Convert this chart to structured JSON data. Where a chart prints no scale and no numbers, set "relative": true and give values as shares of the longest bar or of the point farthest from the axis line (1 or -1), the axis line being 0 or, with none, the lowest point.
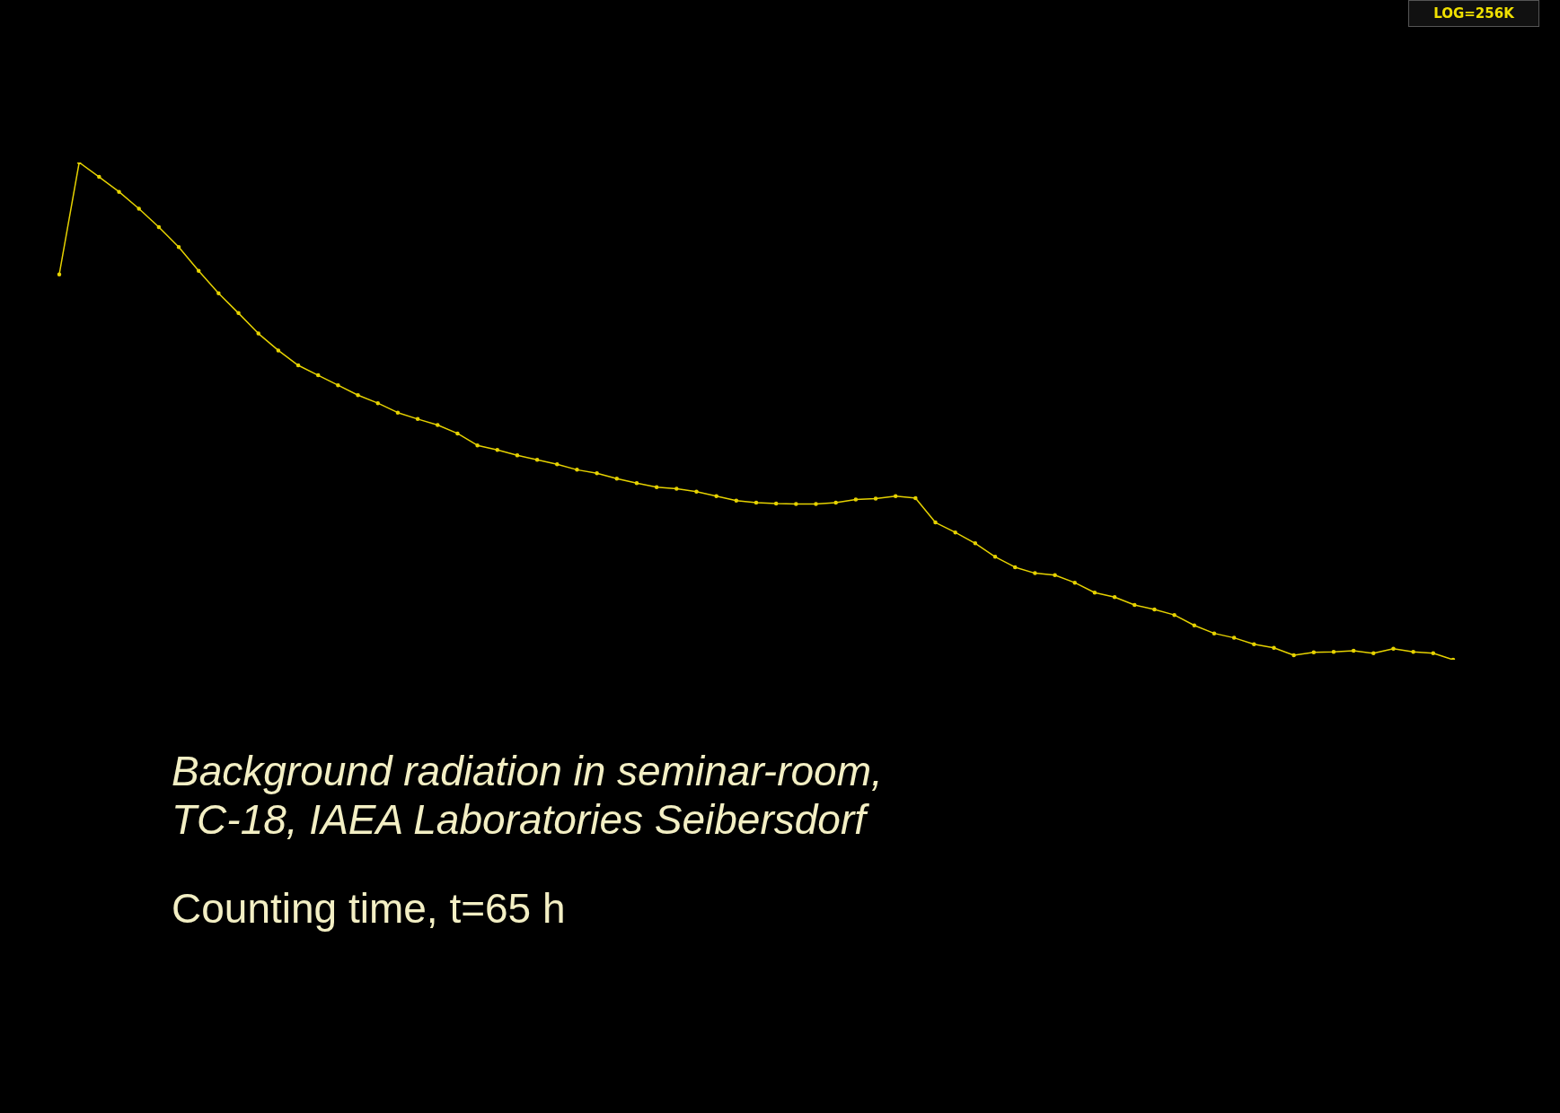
{
  "chart_data": {
    "type": "line",
    "relative": true,
    "marker": "circle",
    "color": "#e6d200",
    "categories": [
      null,
      null,
      null,
      null,
      null,
      null,
      null,
      null,
      null,
      null,
      null,
      null,
      null,
      null,
      null,
      null,
      null,
      null,
      null,
      null,
      null,
      null,
      null,
      null,
      null,
      null,
      null,
      null,
      null,
      null,
      null,
      null,
      null,
      null,
      null,
      null,
      null,
      null,
      null,
      null,
      null,
      null,
      null,
      null,
      null,
      null,
      null,
      null,
      null,
      null,
      null,
      null,
      null,
      null,
      null,
      null,
      null,
      null,
      null,
      null,
      null,
      null,
      null,
      null,
      null,
      null,
      null,
      null,
      null,
      null,
      null
    ],
    "values": [
      0.775,
      1,
      0.971,
      0.941,
      0.907,
      0.87,
      0.83,
      0.782,
      0.737,
      0.697,
      0.656,
      0.622,
      0.592,
      0.572,
      0.552,
      0.532,
      0.516,
      0.497,
      0.484,
      0.472,
      0.455,
      0.431,
      0.422,
      0.411,
      0.402,
      0.393,
      0.382,
      0.375,
      0.364,
      0.355,
      0.347,
      0.344,
      0.338,
      0.329,
      0.32,
      0.316,
      0.314,
      0.313,
      0.313,
      0.316,
      0.322,
      0.324,
      0.329,
      0.325,
      0.276,
      0.256,
      0.234,
      0.207,
      0.186,
      0.174,
      0.17,
      0.155,
      0.135,
      0.126,
      0.11,
      0.101,
      0.09,
      0.069,
      0.053,
      0.044,
      0.031,
      0.024,
      0.009,
      0.015,
      0.016,
      0.018,
      0.013,
      0.022,
      0.016,
      0.013,
      0
    ],
    "annotations": [
      "LOG=256K",
      "Background radiation in seminar-room,\nTC-18, IAEA Laboratories Seibersdorf",
      "Counting time, t=65 h"
    ]
  }
}
